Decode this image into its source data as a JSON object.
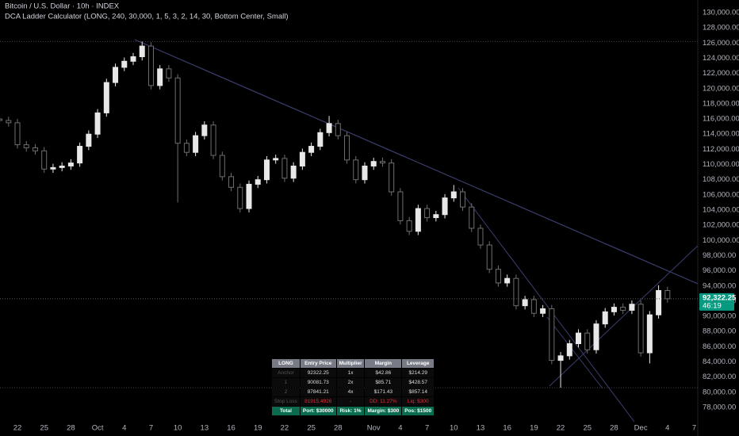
{
  "chart_data": {
    "type": "candlestick",
    "title": "Bitcoin / U.S. Dollar · 10h · INDEX",
    "subtitle": "DCA Ladder Calculator (LONG, 240, 30,000, 1, 5, 3, 2, 14, 30, Bottom Center, Small)",
    "x": [
      -2,
      -1,
      0,
      1,
      2,
      3,
      4,
      5,
      6,
      7,
      8,
      9,
      10,
      11,
      12,
      13,
      14,
      15,
      16,
      17,
      18,
      19,
      20,
      21,
      22,
      23,
      24,
      25,
      26,
      27,
      28,
      29,
      30,
      31,
      32,
      33,
      34,
      35,
      36,
      37,
      38,
      39,
      40,
      41,
      42,
      43,
      44,
      45,
      46,
      47,
      48,
      49,
      50,
      51,
      52,
      53,
      54,
      55,
      56,
      57,
      58,
      59,
      60,
      61,
      62,
      63,
      64,
      65,
      66,
      67,
      68,
      69,
      70,
      71,
      72,
      73
    ],
    "open": [
      116000,
      115800,
      115500,
      112600,
      112200,
      111800,
      109400,
      109600,
      109800,
      110200,
      112400,
      114000,
      116800,
      120800,
      122800,
      123600,
      124200,
      125600,
      120400,
      122600,
      121400,
      112800,
      111600,
      113800,
      115200,
      111200,
      108400,
      107000,
      104200,
      107400,
      108000,
      110600,
      110800,
      108200,
      109800,
      111600,
      112400,
      114200,
      115400,
      113800,
      110600,
      108000,
      109800,
      110400,
      110200,
      106400,
      102600,
      101200,
      104200,
      103000,
      103400,
      105600,
      106400,
      104400,
      101600,
      99400,
      96200,
      94400,
      95000,
      91400,
      92200,
      90400,
      91000,
      84200,
      84800,
      86400,
      87800,
      85600,
      89000,
      90600,
      91200,
      90800,
      91600,
      85200,
      90200,
      93400
    ],
    "high": [
      116500,
      116300,
      116000,
      113100,
      112700,
      112300,
      110100,
      110300,
      110700,
      112900,
      114500,
      117300,
      121300,
      123300,
      124100,
      124700,
      126200,
      126100,
      123100,
      123100,
      121900,
      113300,
      114300,
      115700,
      115700,
      111700,
      108900,
      107500,
      107900,
      108500,
      111100,
      111300,
      111300,
      110300,
      112100,
      112900,
      114700,
      116400,
      115900,
      114300,
      111100,
      110300,
      110900,
      110900,
      110700,
      106900,
      103100,
      104700,
      104700,
      103900,
      106100,
      107300,
      106900,
      104900,
      102100,
      99900,
      96700,
      95500,
      95500,
      92700,
      92700,
      91500,
      91500,
      85300,
      86900,
      88300,
      88300,
      89500,
      91100,
      91700,
      91700,
      92100,
      92100,
      90700,
      94100,
      93900
    ],
    "low": [
      115300,
      115000,
      112100,
      111700,
      111300,
      108900,
      108900,
      109100,
      109300,
      109700,
      111900,
      113500,
      116300,
      120300,
      122300,
      123100,
      123700,
      119900,
      119900,
      120900,
      105000,
      111100,
      111100,
      113300,
      110700,
      107900,
      106500,
      103700,
      103700,
      106900,
      107500,
      110100,
      107700,
      107700,
      109300,
      111100,
      111900,
      113700,
      113300,
      110100,
      107500,
      107500,
      109300,
      109700,
      105900,
      102100,
      100700,
      100700,
      102500,
      102500,
      102900,
      105100,
      103900,
      101100,
      98900,
      95700,
      93900,
      93900,
      90900,
      90900,
      89900,
      89900,
      83700,
      80600,
      84300,
      85900,
      85100,
      85100,
      88500,
      90100,
      90300,
      90300,
      84700,
      83800,
      89700,
      91800
    ],
    "close": [
      115800,
      115500,
      112600,
      112200,
      111800,
      109400,
      109600,
      109800,
      110200,
      112400,
      114000,
      116800,
      120800,
      122800,
      123600,
      124200,
      125600,
      120400,
      122600,
      121400,
      112800,
      111600,
      113800,
      115200,
      111200,
      108400,
      107000,
      104200,
      107400,
      108000,
      110600,
      110800,
      108200,
      109800,
      111600,
      112400,
      114200,
      115400,
      113800,
      110600,
      108000,
      109800,
      110400,
      110200,
      106400,
      102600,
      101200,
      104200,
      103000,
      103400,
      105600,
      106400,
      104400,
      101600,
      99400,
      96200,
      94400,
      95000,
      91400,
      92200,
      90400,
      91000,
      84200,
      84800,
      86400,
      87800,
      85600,
      89000,
      90600,
      91200,
      90800,
      91600,
      85200,
      90200,
      93400,
      92322.25
    ],
    "up_color": "#e8e8e8",
    "down_color": "#6e6e6e",
    "xlim": [
      -1.96,
      76.4
    ],
    "xticks": [
      {
        "value": 0,
        "label": "22"
      },
      {
        "value": 3,
        "label": "25"
      },
      {
        "value": 6,
        "label": "28"
      },
      {
        "value": 9,
        "label": "Oct"
      },
      {
        "value": 12,
        "label": "4"
      },
      {
        "value": 15,
        "label": "7"
      },
      {
        "value": 18,
        "label": "10"
      },
      {
        "value": 21,
        "label": "13"
      },
      {
        "value": 24,
        "label": "16"
      },
      {
        "value": 27,
        "label": "19"
      },
      {
        "value": 30,
        "label": "22"
      },
      {
        "value": 33,
        "label": "25"
      },
      {
        "value": 36,
        "label": "28"
      },
      {
        "value": 40,
        "label": "Nov"
      },
      {
        "value": 43,
        "label": "4"
      },
      {
        "value": 46,
        "label": "7"
      },
      {
        "value": 49,
        "label": "10"
      },
      {
        "value": 52,
        "label": "13"
      },
      {
        "value": 55,
        "label": "16"
      },
      {
        "value": 58,
        "label": "19"
      },
      {
        "value": 61,
        "label": "22"
      },
      {
        "value": 64,
        "label": "25"
      },
      {
        "value": 67,
        "label": "28"
      },
      {
        "value": 70,
        "label": "Dec"
      },
      {
        "value": 73,
        "label": "4"
      },
      {
        "value": 76,
        "label": "7"
      }
    ],
    "ylim": [
      76120,
      131670
    ],
    "yticks": [
      {
        "value": 78000,
        "label": "78,000.00"
      },
      {
        "value": 80000,
        "label": "80,000.00"
      },
      {
        "value": 82000,
        "label": "82,000.00"
      },
      {
        "value": 84000,
        "label": "84,000.00"
      },
      {
        "value": 86000,
        "label": "86,000.00"
      },
      {
        "value": 88000,
        "label": "88,000.00"
      },
      {
        "value": 90000,
        "label": "90,000.00"
      },
      {
        "value": 92000,
        "label": "92,000.00"
      },
      {
        "value": 94000,
        "label": "94,000.00"
      },
      {
        "value": 96000,
        "label": "96,000.00"
      },
      {
        "value": 98000,
        "label": "98,000.00"
      },
      {
        "value": 100000,
        "label": "100,000.00"
      },
      {
        "value": 102000,
        "label": "102,000.00"
      },
      {
        "value": 104000,
        "label": "104,000.00"
      },
      {
        "value": 106000,
        "label": "106,000.00"
      },
      {
        "value": 108000,
        "label": "108,000.00"
      },
      {
        "value": 110000,
        "label": "110,000.00"
      },
      {
        "value": 112000,
        "label": "112,000.00"
      },
      {
        "value": 114000,
        "label": "114,000.00"
      },
      {
        "value": 116000,
        "label": "116,000.00"
      },
      {
        "value": 118000,
        "label": "118,000.00"
      },
      {
        "value": 120000,
        "label": "120,000.00"
      },
      {
        "value": 122000,
        "label": "122,000.00"
      },
      {
        "value": 124000,
        "label": "124,000.00"
      },
      {
        "value": 126000,
        "label": "126,000.00"
      },
      {
        "value": 128000,
        "label": "128,000.00"
      },
      {
        "value": 130000,
        "label": "130,000.00"
      }
    ],
    "levels": [
      126200,
      80600
    ],
    "last_price": {
      "value": 92322.25,
      "label": "92,322.25"
    },
    "countdown": "46:19",
    "price_color": "#089981"
  },
  "table": {
    "rows": [
      [
        "LONG",
        "Entry Price",
        "Multiplier",
        "Margin",
        "Leverage"
      ],
      [
        "Anchor",
        "92322.25",
        "1x",
        "$42.86",
        "$214.29"
      ],
      [
        "1",
        "90081.73",
        "2x",
        "$85.71",
        "$428.57"
      ],
      [
        "2",
        "87841.21",
        "4x",
        "$171.43",
        "$857.14"
      ],
      [
        "Stop Loss",
        "81915.4926",
        "-",
        "DD: 11.27%",
        "Liq: $300"
      ],
      [
        "Total",
        "Port: $30000",
        "Risk: 1%",
        "Margin: $300",
        "Pos: $1500"
      ]
    ]
  }
}
